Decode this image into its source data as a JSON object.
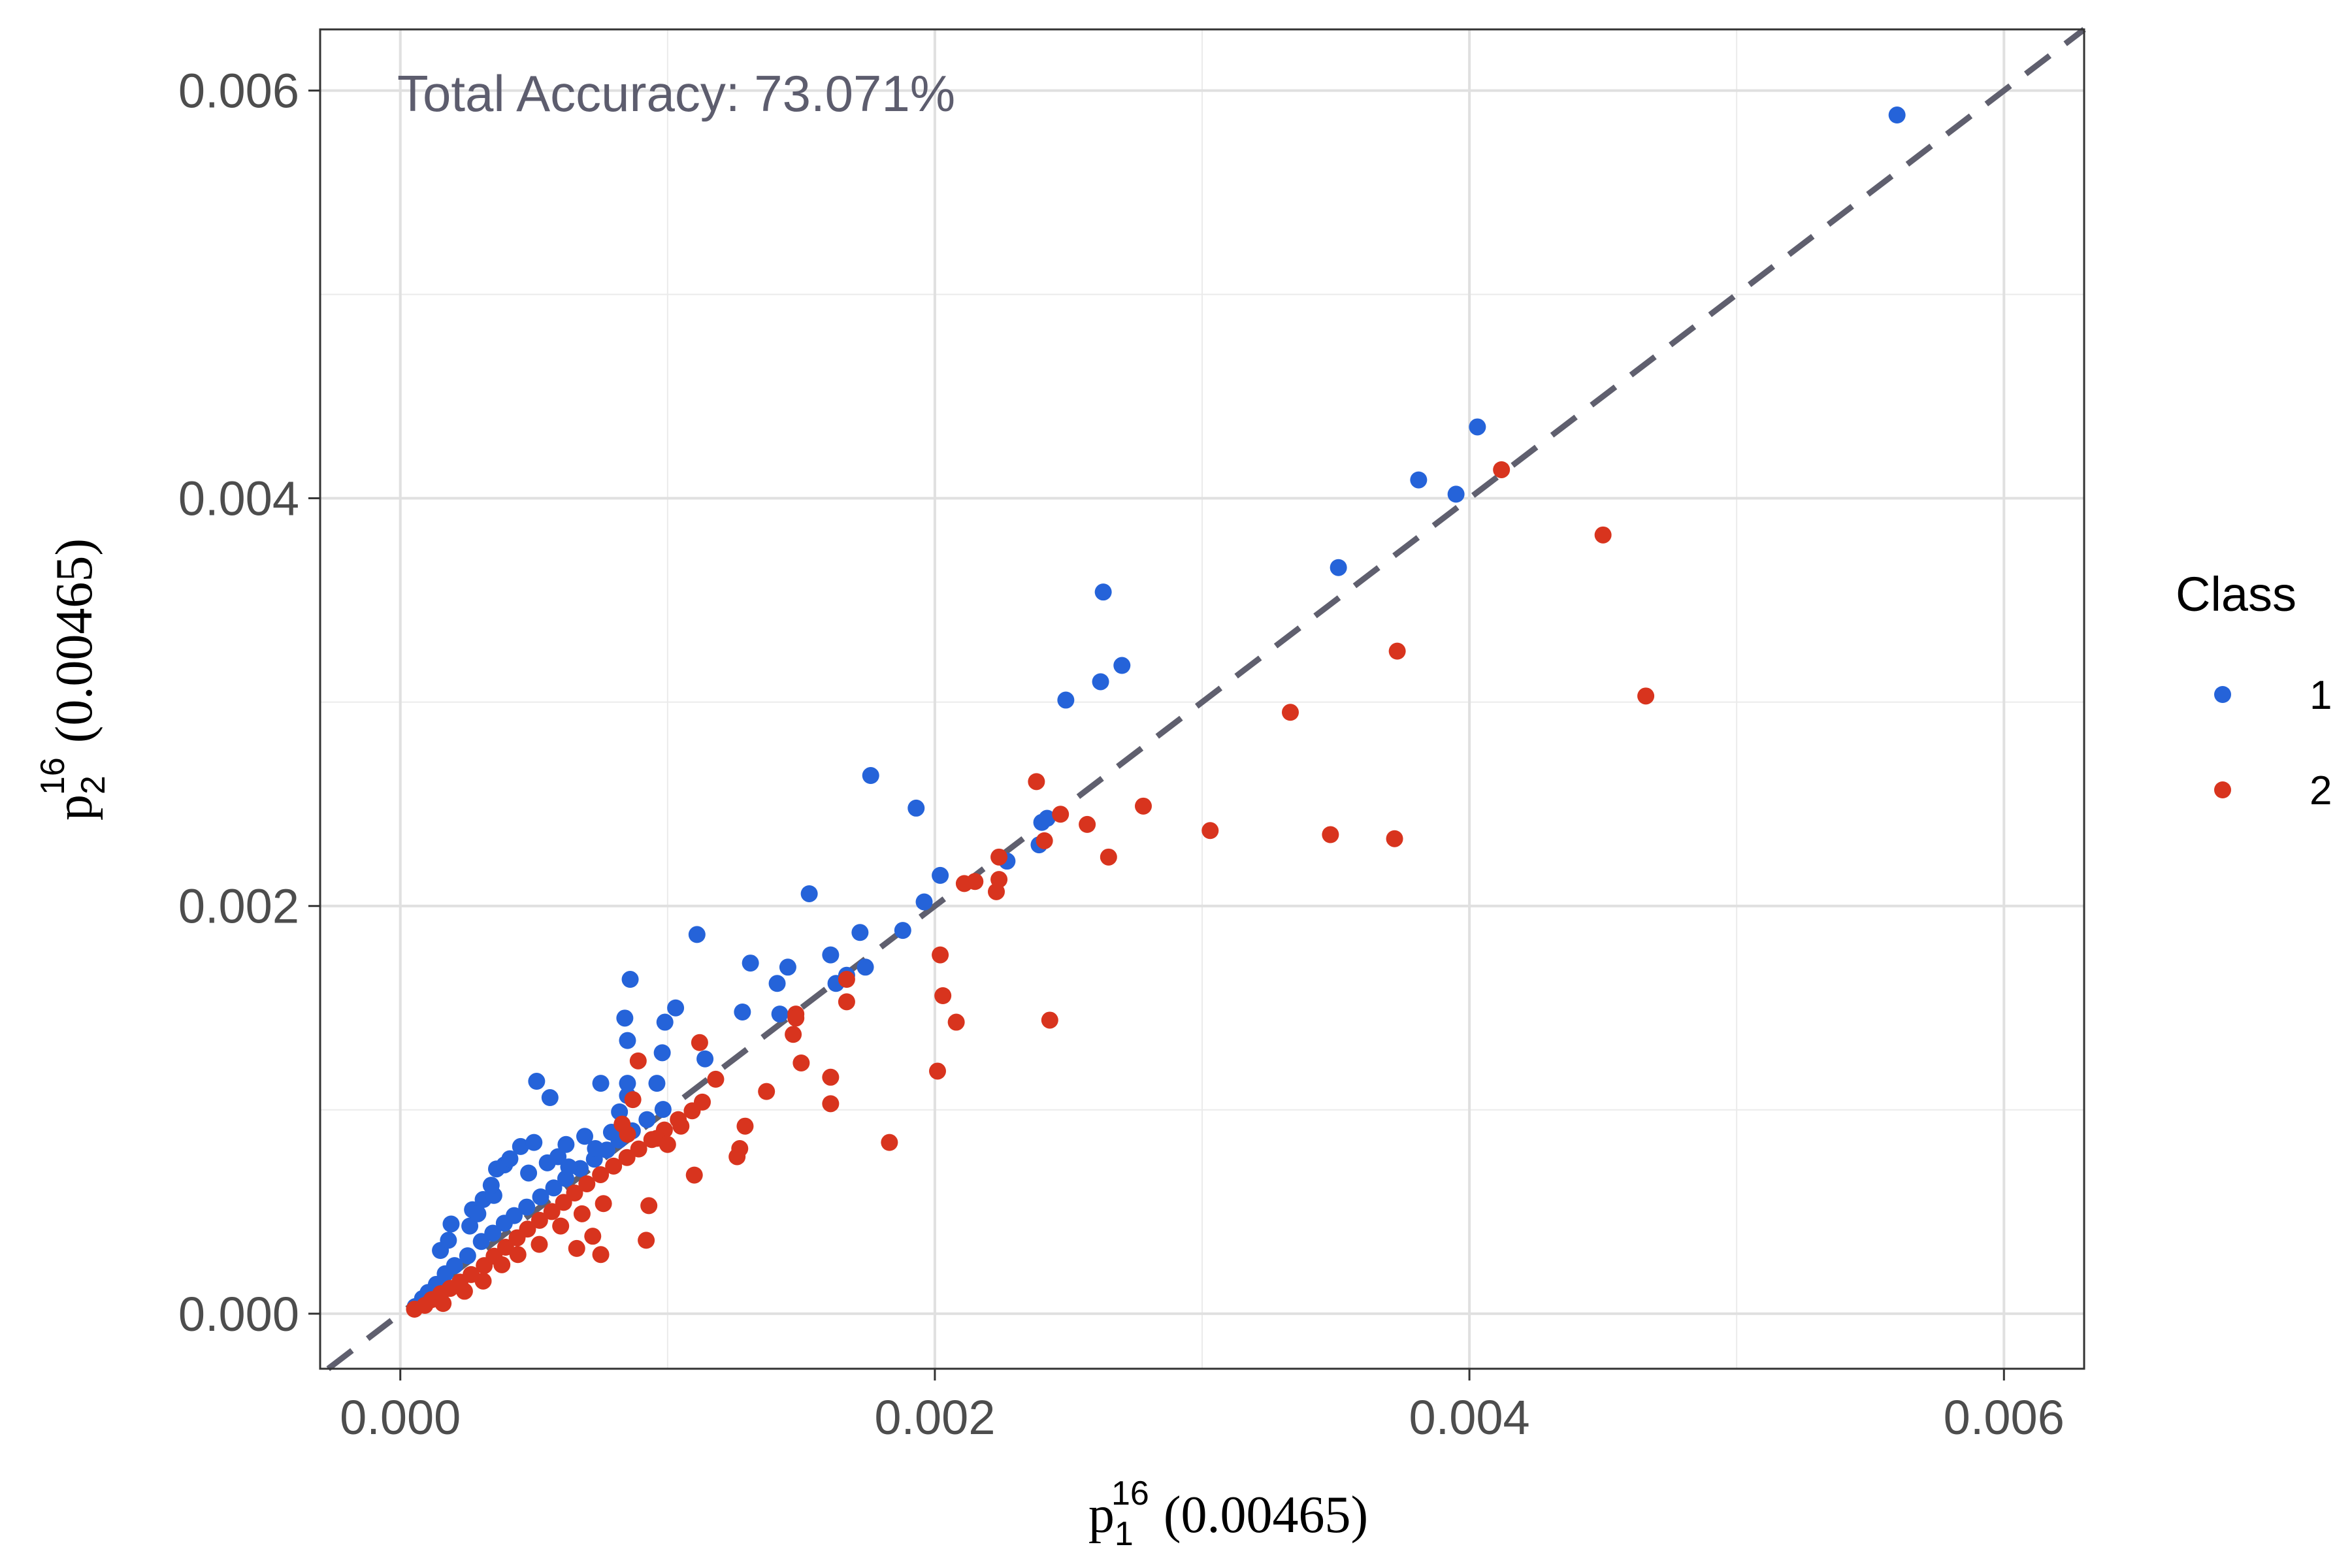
{
  "chart_data": {
    "type": "scatter",
    "annotation": "Total Accuracy: 73.071%",
    "xlabel": {
      "base": "p",
      "sub": "1",
      "sup": "16",
      "rest": "(0.00465)"
    },
    "ylabel": {
      "base": "p",
      "sub": "2",
      "sup": "16",
      "rest": "(0.00465)"
    },
    "xlim": [
      -0.0003,
      0.0063
    ],
    "ylim": [
      -0.00027,
      0.0063
    ],
    "x_ticks": [
      0.0,
      0.002,
      0.004,
      0.006
    ],
    "y_ticks": [
      0.0,
      0.002,
      0.004,
      0.006
    ],
    "x_tick_labels": [
      "0.000",
      "0.002",
      "0.004",
      "0.006"
    ],
    "y_tick_labels": [
      "0.000",
      "0.002",
      "0.004",
      "0.006"
    ],
    "grid": true,
    "reference_line": {
      "style": "dashed",
      "slope": 1,
      "intercept": 0,
      "color": "#5f5f6e"
    },
    "legend": {
      "title": "Class",
      "placement": "right"
    },
    "series": [
      {
        "name": "1",
        "color": "#2563d9",
        "points": [
          [
            5.6e-05,
            3.5e-05
          ],
          [
            8.3e-05,
            7.4e-05
          ],
          [
            0.000104,
            0.000104
          ],
          [
            0.000135,
            0.000144
          ],
          [
            0.000168,
            0.000196
          ],
          [
            0.000203,
            0.000236
          ],
          [
            0.000252,
            0.000284
          ],
          [
            0.000303,
            0.000354
          ],
          [
            0.000346,
            0.000395
          ],
          [
            0.000389,
            0.000444
          ],
          [
            0.000426,
            0.000481
          ],
          [
            0.000473,
            0.000523
          ],
          [
            0.000525,
            0.000573
          ],
          [
            0.000574,
            0.000617
          ],
          [
            0.000619,
            0.000663
          ],
          [
            0.000673,
            0.000712
          ],
          [
            0.000726,
            0.000758
          ],
          [
            0.000773,
            0.000803
          ],
          [
            0.000818,
            0.000852
          ],
          [
            0.000868,
            0.000897
          ],
          [
            0.000923,
            0.000952
          ],
          [
            0.000983,
            0.001002
          ],
          [
            0.00015,
            0.00031
          ],
          [
            0.00018,
            0.00036
          ],
          [
            0.00019,
            0.00044
          ],
          [
            0.00026,
            0.00043
          ],
          [
            0.00027,
            0.00051
          ],
          [
            0.00029,
            0.00049
          ],
          [
            0.00031,
            0.00056
          ],
          [
            0.00035,
            0.00058
          ],
          [
            0.00034,
            0.00063
          ],
          [
            0.00036,
            0.00071
          ],
          [
            0.00039,
            0.00073
          ],
          [
            0.00041,
            0.00076
          ],
          [
            0.00045,
            0.00082
          ],
          [
            0.0005,
            0.00084
          ],
          [
            0.00048,
            0.00069
          ],
          [
            0.00055,
            0.00074
          ],
          [
            0.00059,
            0.00077
          ],
          [
            0.00063,
            0.00072
          ],
          [
            0.00062,
            0.00083
          ],
          [
            0.00069,
            0.00087
          ],
          [
            0.00073,
            0.00081
          ],
          [
            0.00079,
            0.00089
          ],
          [
            0.00082,
            0.00099
          ],
          [
            0.00085,
            0.00107
          ],
          [
            0.00085,
            0.00113
          ],
          [
            0.00096,
            0.00113
          ],
          [
            0.00098,
            0.00128
          ],
          [
            0.00085,
            0.00134
          ],
          [
            0.00084,
            0.00145
          ],
          [
            0.00086,
            0.00164
          ],
          [
            0.00103,
            0.0015
          ],
          [
            0.00111,
            0.00186
          ],
          [
            0.00114,
            0.00125
          ],
          [
            0.00099,
            0.00143
          ],
          [
            0.00051,
            0.00114
          ],
          [
            0.00056,
            0.00106
          ],
          [
            0.00075,
            0.00113
          ],
          [
            0.00128,
            0.00148
          ],
          [
            0.00131,
            0.00172
          ],
          [
            0.00141,
            0.00162
          ],
          [
            0.00142,
            0.00147
          ],
          [
            0.00145,
            0.0017
          ],
          [
            0.00153,
            0.00206
          ],
          [
            0.00161,
            0.00176
          ],
          [
            0.00163,
            0.00162
          ],
          [
            0.00167,
            0.00166
          ],
          [
            0.00172,
            0.00187
          ],
          [
            0.00174,
            0.0017
          ],
          [
            0.00176,
            0.00264
          ],
          [
            0.00188,
            0.00188
          ],
          [
            0.00193,
            0.00248
          ],
          [
            0.00196,
            0.00202
          ],
          [
            0.00202,
            0.00215
          ],
          [
            0.00227,
            0.00222
          ],
          [
            0.00239,
            0.0023
          ],
          [
            0.0024,
            0.00241
          ],
          [
            0.00242,
            0.00243
          ],
          [
            0.00249,
            0.00301
          ],
          [
            0.00262,
            0.0031
          ],
          [
            0.00263,
            0.00354
          ],
          [
            0.0027,
            0.00318
          ],
          [
            0.00351,
            0.00366
          ],
          [
            0.00381,
            0.00409
          ],
          [
            0.00395,
            0.00402
          ],
          [
            0.00403,
            0.00435
          ],
          [
            0.0056,
            0.00588
          ]
        ]
      },
      {
        "name": "2",
        "color": "#d8341e",
        "points": [
          [
            5.3e-05,
            2.2e-05
          ],
          [
            9.2e-05,
            4.1e-05
          ],
          [
            0.000117,
            6.9e-05
          ],
          [
            0.000151,
            9.8e-05
          ],
          [
            0.000186,
            0.000124
          ],
          [
            0.000223,
            0.000155
          ],
          [
            0.000265,
            0.000192
          ],
          [
            0.000314,
            0.000236
          ],
          [
            0.000351,
            0.000282
          ],
          [
            0.000394,
            0.000326
          ],
          [
            0.000437,
            0.000372
          ],
          [
            0.000476,
            0.000415
          ],
          [
            0.000521,
            0.000458
          ],
          [
            0.000567,
            0.000501
          ],
          [
            0.000611,
            0.000546
          ],
          [
            0.000652,
            0.000592
          ],
          [
            0.000698,
            0.000637
          ],
          [
            0.000749,
            0.000682
          ],
          [
            0.000798,
            0.000724
          ],
          [
            0.000848,
            0.000766
          ],
          [
            0.000892,
            0.000808
          ],
          [
            0.000941,
            0.000854
          ],
          [
            0.000988,
            0.000901
          ],
          [
            0.00104,
            0.000952
          ],
          [
            0.001092,
            0.000995
          ],
          [
            0.00113,
            0.001038
          ],
          [
            0.00016,
            5e-05
          ],
          [
            0.00024,
            0.00011
          ],
          [
            0.00031,
            0.00016
          ],
          [
            0.00038,
            0.00024
          ],
          [
            0.00044,
            0.00029
          ],
          [
            0.00052,
            0.00034
          ],
          [
            0.0006,
            0.00043
          ],
          [
            0.00068,
            0.00049
          ],
          [
            0.00076,
            0.00054
          ],
          [
            0.00072,
            0.00038
          ],
          [
            0.00066,
            0.00032
          ],
          [
            0.00075,
            0.00029
          ],
          [
            0.00092,
            0.00036
          ],
          [
            0.00093,
            0.00053
          ],
          [
            0.00085,
            0.00088
          ],
          [
            0.00083,
            0.00093
          ],
          [
            0.00087,
            0.00105
          ],
          [
            0.00089,
            0.00124
          ],
          [
            0.00096,
            0.00086
          ],
          [
            0.001,
            0.00083
          ],
          [
            0.00105,
            0.00092
          ],
          [
            0.0011,
            0.00068
          ],
          [
            0.00112,
            0.00133
          ],
          [
            0.00118,
            0.00115
          ],
          [
            0.00126,
            0.00077
          ],
          [
            0.00127,
            0.00081
          ],
          [
            0.00129,
            0.00092
          ],
          [
            0.00137,
            0.00109
          ],
          [
            0.00147,
            0.00137
          ],
          [
            0.00148,
            0.00147
          ],
          [
            0.00148,
            0.00145
          ],
          [
            0.0015,
            0.00123
          ],
          [
            0.00161,
            0.00116
          ],
          [
            0.00161,
            0.00103
          ],
          [
            0.00167,
            0.00153
          ],
          [
            0.00167,
            0.00164
          ],
          [
            0.00183,
            0.00084
          ],
          [
            0.00201,
            0.00119
          ],
          [
            0.00202,
            0.00176
          ],
          [
            0.00203,
            0.00156
          ],
          [
            0.00208,
            0.00143
          ],
          [
            0.00211,
            0.00211
          ],
          [
            0.00215,
            0.00212
          ],
          [
            0.00223,
            0.00207
          ],
          [
            0.00224,
            0.00213
          ],
          [
            0.00224,
            0.00224
          ],
          [
            0.00238,
            0.00261
          ],
          [
            0.00241,
            0.00232
          ],
          [
            0.00243,
            0.00144
          ],
          [
            0.00247,
            0.00245
          ],
          [
            0.00257,
            0.0024
          ],
          [
            0.00265,
            0.00224
          ],
          [
            0.00278,
            0.00249
          ],
          [
            0.00303,
            0.00237
          ],
          [
            0.00333,
            0.00295
          ],
          [
            0.00348,
            0.00235
          ],
          [
            0.00372,
            0.00233
          ],
          [
            0.00373,
            0.00325
          ],
          [
            0.00412,
            0.00414
          ],
          [
            0.0045,
            0.00382
          ],
          [
            0.00466,
            0.00303
          ]
        ]
      }
    ]
  }
}
